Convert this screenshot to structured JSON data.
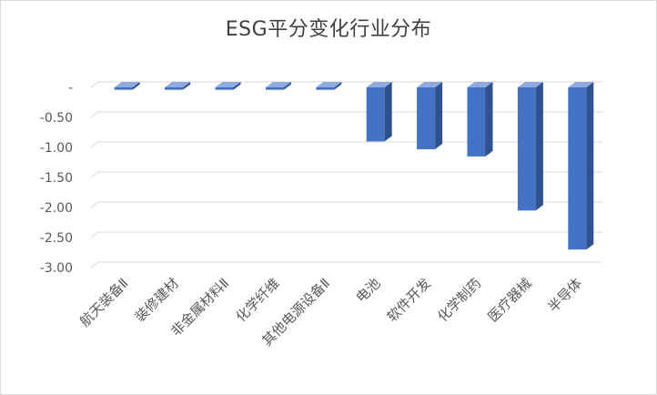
{
  "chart_data": {
    "type": "bar",
    "title": "ESG平分变化行业分布",
    "categories": [
      "航天装备Ⅱ",
      "装修建材",
      "非金属材料Ⅱ",
      "化学纤维",
      "其他电源设备Ⅱ",
      "电池",
      "软件开发",
      "化学制药",
      "医疗器械",
      "半导体"
    ],
    "values": [
      -0.04,
      -0.04,
      -0.04,
      -0.04,
      -0.04,
      -0.9,
      -1.03,
      -1.15,
      -2.05,
      -2.7
    ],
    "yticks": [
      {
        "value": 0,
        "label": "-"
      },
      {
        "value": -0.5,
        "label": "-0.50"
      },
      {
        "value": -1.0,
        "label": "-1.00"
      },
      {
        "value": -1.5,
        "label": "-1.50"
      },
      {
        "value": -2.0,
        "label": "-2.00"
      },
      {
        "value": -2.5,
        "label": "-2.50"
      },
      {
        "value": -3.0,
        "label": "-3.00"
      }
    ],
    "ylim": [
      -3.0,
      0
    ],
    "grid": true,
    "legend": "none",
    "bar_color": "#4472c4",
    "bar_side_color": "#2f528f",
    "bar_top_color": "#8faadc",
    "gridline_color": "#d9d9d9"
  }
}
